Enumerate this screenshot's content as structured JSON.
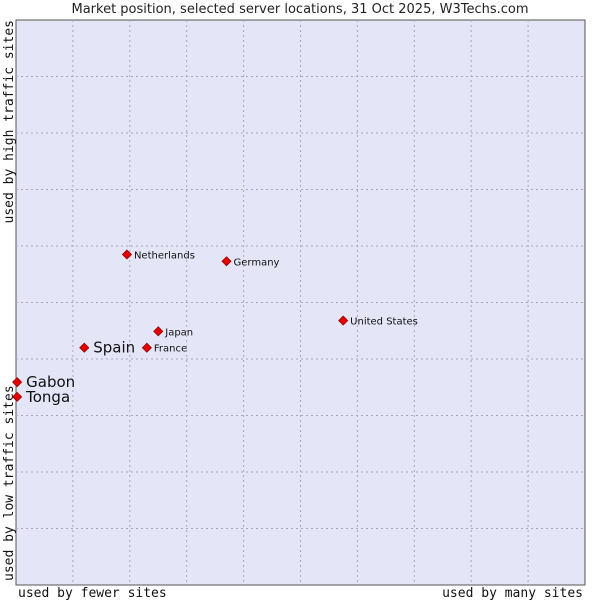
{
  "chart_data": {
    "type": "scatter",
    "title": "Market position, selected server locations, 31 Oct 2025, W3Techs.com",
    "xlabel_left": "used by fewer sites",
    "xlabel_right": "used by many sites",
    "ylabel_top": "used by high traffic sites",
    "ylabel_bottom": "used by low traffic sites",
    "xlim": [
      0,
      10
    ],
    "ylim": [
      0,
      10
    ],
    "grid": true,
    "colors": {
      "plot_bg": "#e4e6f8",
      "grid": "#a8a8c0",
      "marker": "#e00000",
      "marker_stroke": "#990000"
    },
    "points": [
      {
        "label": "Netherlands",
        "x": 1.95,
        "y": 5.85,
        "size": "small"
      },
      {
        "label": "Germany",
        "x": 3.7,
        "y": 5.73,
        "size": "small"
      },
      {
        "label": "United States",
        "x": 5.75,
        "y": 4.68,
        "size": "small"
      },
      {
        "label": "Japan",
        "x": 2.5,
        "y": 4.49,
        "size": "small"
      },
      {
        "label": "France",
        "x": 2.3,
        "y": 4.2,
        "size": "small"
      },
      {
        "label": "Spain",
        "x": 1.2,
        "y": 4.2,
        "size": "large"
      },
      {
        "label": "Gabon",
        "x": 0.02,
        "y": 3.59,
        "size": "large"
      },
      {
        "label": "Tonga",
        "x": 0.02,
        "y": 3.33,
        "size": "large"
      }
    ]
  }
}
